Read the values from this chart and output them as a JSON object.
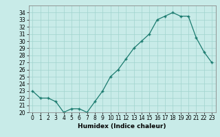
{
  "x": [
    0,
    1,
    2,
    3,
    4,
    5,
    6,
    7,
    8,
    9,
    10,
    11,
    12,
    13,
    14,
    15,
    16,
    17,
    18,
    19,
    20,
    21,
    22,
    23
  ],
  "y": [
    23,
    22,
    22,
    21.5,
    20,
    20.5,
    20.5,
    20,
    21.5,
    23,
    25,
    26,
    27.5,
    29,
    30,
    31,
    33,
    33.5,
    34,
    33.5,
    33.5,
    30.5,
    28.5,
    27
  ],
  "line_color": "#1a7a6e",
  "marker": "+",
  "xlabel": "Humidex (Indice chaleur)",
  "xlim": [
    -0.5,
    23.5
  ],
  "ylim": [
    20,
    35
  ],
  "yticks": [
    20,
    21,
    22,
    23,
    24,
    25,
    26,
    27,
    28,
    29,
    30,
    31,
    32,
    33,
    34
  ],
  "xticks": [
    0,
    1,
    2,
    3,
    4,
    5,
    6,
    7,
    8,
    9,
    10,
    11,
    12,
    13,
    14,
    15,
    16,
    17,
    18,
    19,
    20,
    21,
    22,
    23
  ],
  "bg_color": "#c8ebe8",
  "grid_color": "#a0d4ce",
  "axis_fontsize": 6.5,
  "tick_fontsize": 5.5
}
